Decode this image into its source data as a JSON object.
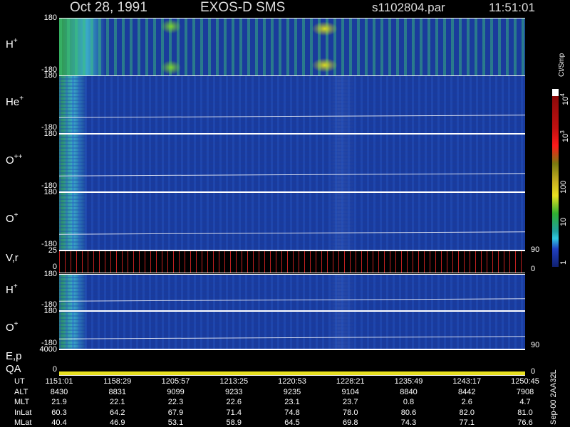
{
  "header": {
    "date": "Oct 28, 1991",
    "instrument": "EXOS-D SMS",
    "file": "s1102804.par",
    "time": "11:51:01"
  },
  "panels": [
    {
      "label": "H",
      "sup": "+",
      "ticks": [
        180,
        -180
      ]
    },
    {
      "label": "He",
      "sup": "+",
      "ticks": [
        180,
        -180
      ]
    },
    {
      "label": "O",
      "sup": "++",
      "ticks": [
        180,
        -180
      ]
    },
    {
      "label": "O",
      "sup": "+",
      "ticks": [
        180,
        -180
      ]
    },
    {
      "label": "V,r",
      "ticks": [
        25,
        0
      ],
      "right_ticks": [
        90,
        0
      ]
    },
    {
      "label": "H",
      "sup": "+",
      "ticks": [
        180,
        -180
      ]
    },
    {
      "label": "O",
      "sup": "+",
      "ticks": [
        180,
        -180
      ],
      "right_ticks": [
        90
      ]
    },
    {
      "label": "E,p",
      "label2": "QA",
      "ticks": [
        4000,
        0
      ],
      "right_ticks": [
        0
      ]
    }
  ],
  "colorbar": {
    "unit": "Ct/Smp",
    "labels": [
      {
        "base": "10",
        "exp": "4"
      },
      {
        "base": "10",
        "exp": "3"
      },
      {
        "base": "100"
      },
      {
        "base": "10"
      },
      {
        "base": "1"
      }
    ]
  },
  "side_note": "Sep-00 2AA32L",
  "footer": {
    "rows": [
      {
        "name": "UT",
        "values": [
          "1151:01",
          "1158:29",
          "1205:57",
          "1213:25",
          "1220:53",
          "1228:21",
          "1235:49",
          "1243:17",
          "1250:45"
        ]
      },
      {
        "name": "ALT",
        "values": [
          "8430",
          "8831",
          "9099",
          "9233",
          "9235",
          "9104",
          "8840",
          "8442",
          "7908"
        ]
      },
      {
        "name": "MLT",
        "values": [
          "21.9",
          "22.1",
          "22.3",
          "22.6",
          "23.1",
          "23.7",
          "0.8",
          "2.6",
          "4.7"
        ]
      },
      {
        "name": "InLat",
        "values": [
          "60.3",
          "64.2",
          "67.9",
          "71.4",
          "74.8",
          "78.0",
          "80.6",
          "82.0",
          "81.0"
        ]
      },
      {
        "name": "MLat",
        "values": [
          "40.4",
          "46.9",
          "53.1",
          "58.9",
          "64.5",
          "69.8",
          "74.3",
          "77.1",
          "76.6"
        ]
      }
    ]
  }
}
